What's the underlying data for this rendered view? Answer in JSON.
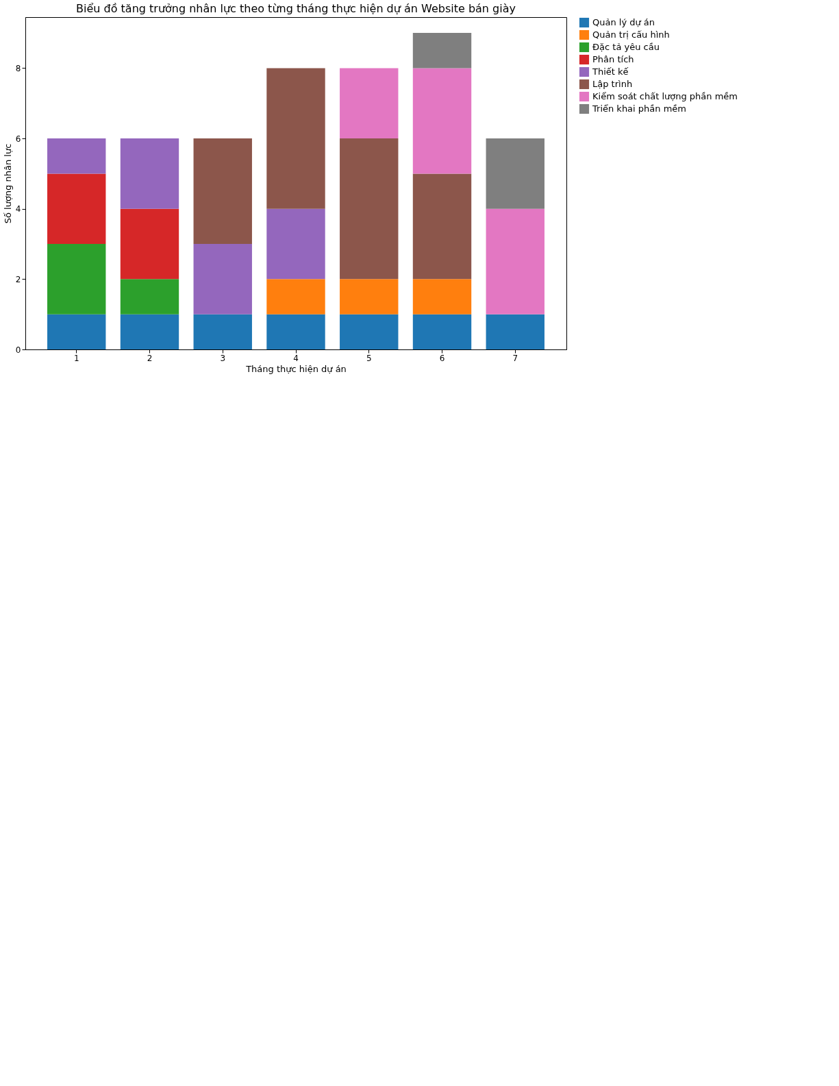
{
  "chart_data": {
    "type": "bar",
    "stacked": true,
    "title": "Biểu đồ tăng trưởng nhân lực theo từng tháng thực hiện dự án Website bán giày",
    "xlabel": "Tháng thực hiện dự án",
    "ylabel": "Số lượng nhân lực",
    "categories": [
      "1",
      "2",
      "3",
      "4",
      "5",
      "6",
      "7"
    ],
    "ylim": [
      0,
      9.45
    ],
    "yticks": [
      0,
      2,
      4,
      6,
      8
    ],
    "grid": false,
    "legend": "top right",
    "series": [
      {
        "name": "Quản lý dự án",
        "color": "#1f77b4",
        "values": [
          1,
          1,
          1,
          1,
          1,
          1,
          1
        ]
      },
      {
        "name": "Quản trị cấu hình",
        "color": "#ff7f0e",
        "values": [
          0,
          0,
          0,
          1,
          1,
          1,
          0
        ]
      },
      {
        "name": "Đặc tả yêu cầu",
        "color": "#2ca02c",
        "values": [
          2,
          1,
          0,
          0,
          0,
          0,
          0
        ]
      },
      {
        "name": "Phân tích",
        "color": "#d62728",
        "values": [
          2,
          2,
          0,
          0,
          0,
          0,
          0
        ]
      },
      {
        "name": "Thiết kế",
        "color": "#9467bd",
        "values": [
          1,
          2,
          2,
          2,
          0,
          0,
          0
        ]
      },
      {
        "name": "Lập trình",
        "color": "#8c564b",
        "values": [
          0,
          0,
          3,
          4,
          4,
          3,
          0
        ]
      },
      {
        "name": "Kiểm soát chất lượng phần mềm",
        "color": "#e377c2",
        "values": [
          0,
          0,
          0,
          0,
          2,
          3,
          3
        ]
      },
      {
        "name": "Triển khai phần mềm",
        "color": "#7f7f7f",
        "values": [
          0,
          0,
          0,
          0,
          0,
          1,
          2
        ]
      }
    ]
  }
}
